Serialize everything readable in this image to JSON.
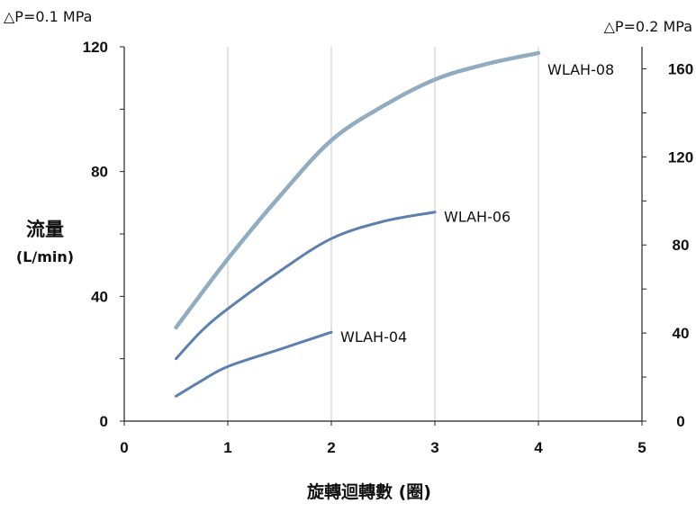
{
  "chart_data": {
    "type": "line",
    "title": "",
    "left_axis_note": "△P=0.1 MPa",
    "right_axis_note": "△P=0.2 MPa",
    "ylabel_line1": "流量",
    "ylabel_line2": "(L/min)",
    "xlabel": "旋轉迴轉數 (圈)",
    "xlim": [
      0,
      5
    ],
    "ylim": [
      0,
      120
    ],
    "y2lim": [
      0,
      170
    ],
    "x_ticks": [
      "0",
      "1",
      "2",
      "3",
      "4",
      "5"
    ],
    "y_ticks": [
      "0",
      "40",
      "80",
      "120"
    ],
    "y2_ticks": [
      "0",
      "40",
      "80",
      "120",
      "160"
    ],
    "grid": "vertical",
    "colors": {
      "grid": "#c8c8c8",
      "axis": "#222222",
      "series_main": "#5b7faf",
      "series_light": "#91acc0"
    },
    "series": [
      {
        "name": "WLAH-08",
        "axis": "left",
        "color": "#91acc0",
        "width": 4.5,
        "x": [
          0.5,
          1.0,
          1.5,
          2.0,
          2.5,
          3.0,
          3.5,
          4.0
        ],
        "y": [
          30,
          52,
          72,
          90,
          101,
          109.5,
          114.5,
          118
        ]
      },
      {
        "name": "WLAH-06",
        "axis": "left",
        "color": "#5b7faf",
        "width": 3,
        "x": [
          0.5,
          0.75,
          1.0,
          1.5,
          2.0,
          2.5,
          3.0
        ],
        "y": [
          20,
          29,
          36,
          48,
          58.5,
          64,
          67
        ]
      },
      {
        "name": "WLAH-04",
        "axis": "left",
        "color": "#5b7faf",
        "width": 3,
        "x": [
          0.5,
          0.75,
          1.0,
          1.5,
          2.0
        ],
        "y": [
          8,
          13,
          17.5,
          23,
          28.5
        ]
      }
    ]
  }
}
